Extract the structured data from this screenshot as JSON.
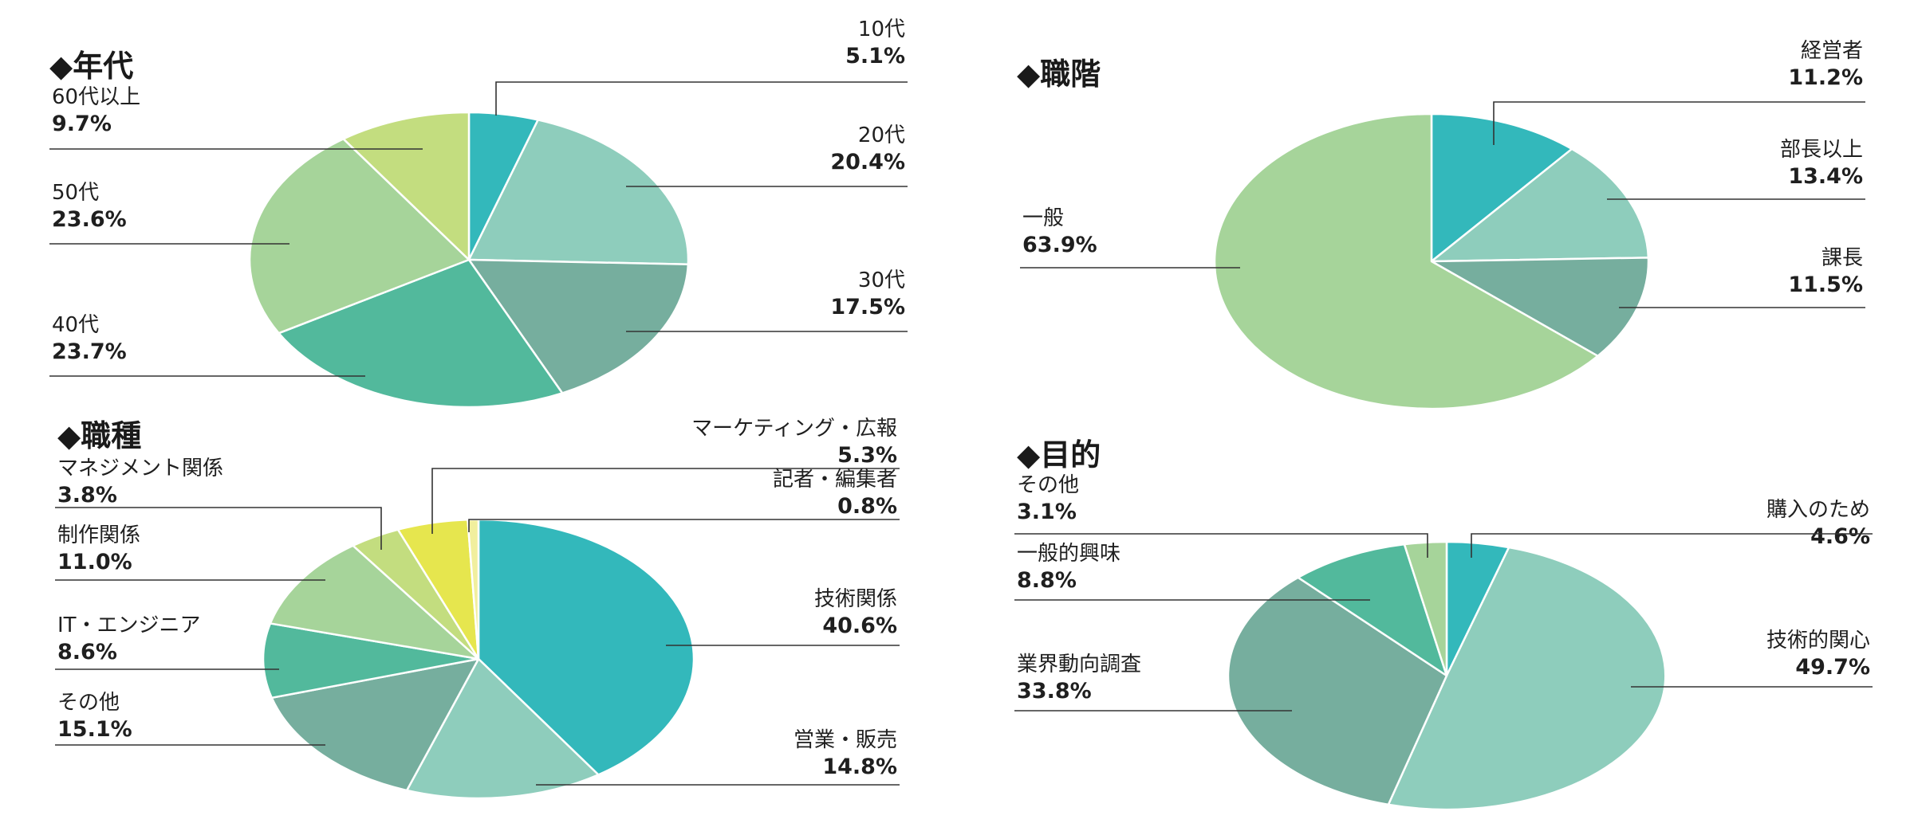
{
  "chart_data": [
    {
      "type": "pie",
      "title": "◆年代",
      "slices": [
        {
          "label": "10代",
          "value_text": "5.1%",
          "value": 5.1,
          "color": "#33b8bb"
        },
        {
          "label": "20代",
          "value_text": "20.4%",
          "value": 20.4,
          "color": "#8ecdbc"
        },
        {
          "label": "30代",
          "value_text": "17.5%",
          "value": 17.5,
          "color": "#76ae9e"
        },
        {
          "label": "40代",
          "value_text": "23.7%",
          "value": 23.7,
          "color": "#52b99c"
        },
        {
          "label": "50代",
          "value_text": "23.6%",
          "value": 23.6,
          "color": "#a6d49a"
        },
        {
          "label": "60代以上",
          "value_text": "9.7%",
          "value": 9.7,
          "color": "#c3dd7f"
        }
      ]
    },
    {
      "type": "pie",
      "title": "◆職階",
      "slices": [
        {
          "label": "経営者",
          "value_text": "11.2%",
          "value": 11.2,
          "color": "#33b8bb"
        },
        {
          "label": "部長以上",
          "value_text": "13.4%",
          "value": 13.4,
          "color": "#8ecdbc"
        },
        {
          "label": "課長",
          "value_text": "11.5%",
          "value": 11.5,
          "color": "#76ae9e"
        },
        {
          "label": "一般",
          "value_text": "63.9%",
          "value": 63.9,
          "color": "#a6d49a"
        }
      ]
    },
    {
      "type": "pie",
      "title": "◆職種",
      "slices": [
        {
          "label": "技術関係",
          "value_text": "40.6%",
          "value": 40.6,
          "color": "#33b8bb"
        },
        {
          "label": "営業・販売",
          "value_text": "14.8%",
          "value": 14.8,
          "color": "#8ecdbc"
        },
        {
          "label": "その他",
          "value_text": "15.1%",
          "value": 15.1,
          "color": "#76ae9e"
        },
        {
          "label": "IT・エンジニア",
          "value_text": "8.6%",
          "value": 8.6,
          "color": "#52b99c"
        },
        {
          "label": "制作関係",
          "value_text": "11.0%",
          "value": 11.0,
          "color": "#a6d49a"
        },
        {
          "label": "マネジメント関係",
          "value_text": "3.8%",
          "value": 3.8,
          "color": "#c3dd7f"
        },
        {
          "label": "マーケティング・広報",
          "value_text": "5.3%",
          "value": 5.3,
          "color": "#e6e64e"
        },
        {
          "label": "記者・編集者",
          "value_text": "0.8%",
          "value": 0.8,
          "color": "#f1ef9e"
        }
      ]
    },
    {
      "type": "pie",
      "title": "◆目的",
      "slices": [
        {
          "label": "購入のため",
          "value_text": "4.6%",
          "value": 4.6,
          "color": "#33b8bb"
        },
        {
          "label": "技術的関心",
          "value_text": "49.7%",
          "value": 49.7,
          "color": "#8ecdbc"
        },
        {
          "label": "業界動向調査",
          "value_text": "33.8%",
          "value": 33.8,
          "color": "#76ae9e"
        },
        {
          "label": "一般的興味",
          "value_text": "8.8%",
          "value": 8.8,
          "color": "#52b99c"
        },
        {
          "label": "その他",
          "value_text": "3.1%",
          "value": 3.1,
          "color": "#a6d49a"
        }
      ]
    }
  ]
}
